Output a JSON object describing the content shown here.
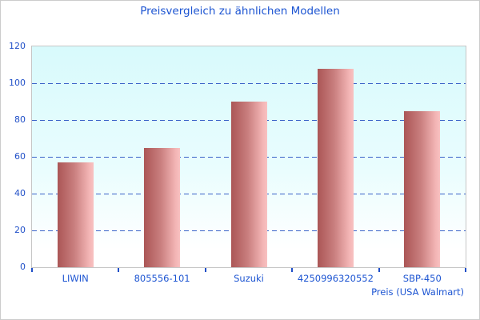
{
  "chart_data": {
    "type": "bar",
    "title": "Preisvergleich zu ähnlichen Modellen",
    "categories": [
      "LIWIN",
      "805556-101",
      "Suzuki",
      "4250996320552",
      "SBP-450"
    ],
    "values": [
      57,
      65,
      90,
      108,
      85
    ],
    "xlabel": "Preis (USA Walmart)",
    "ylabel": "",
    "ylim": [
      0,
      120
    ],
    "yticks": [
      0,
      20,
      40,
      60,
      80,
      100,
      120
    ],
    "grid": "horizontal-dashed",
    "legend": "none"
  },
  "colors": {
    "text_blue": "#1d55d2",
    "grid_blue": "#3a62c8",
    "tick_blue": "#2150c8",
    "bar_gradient_start": "#ab5656",
    "bar_gradient_mid": "#c87d7d",
    "bar_gradient_end": "#f8c1c1",
    "plot_background_top": "#d8fafc",
    "plot_background_bottom": "#ffffff",
    "plot_border": "#c6c6c6",
    "canvas_border": "#cccccc"
  }
}
